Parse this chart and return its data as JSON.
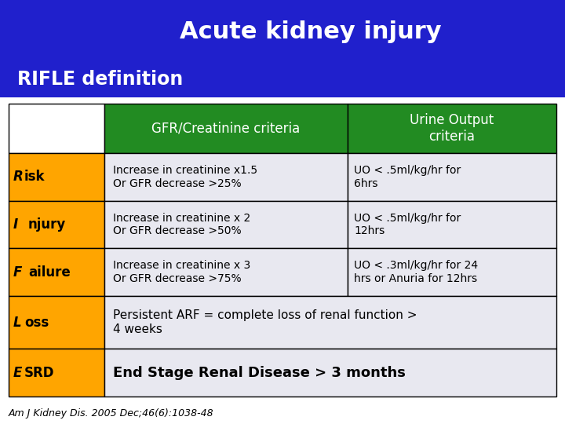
{
  "title1": "Acute kidney injury",
  "title2": "RIFLE definition",
  "header_bg": "#2020CC",
  "header_text_color": "#FFFFFF",
  "col_header_bg": "#228B22",
  "col_header_text_color": "#FFFFFF",
  "row_label_bg": "#FFA500",
  "cell_bg": "#E8E8F0",
  "col_headers": [
    "GFR/Creatinine criteria",
    "Urine Output\ncriteria"
  ],
  "rows": [
    {
      "label": "Risk",
      "gfr": "Increase in creatinine x1.5\nOr GFR decrease >25%",
      "uo": "UO < .5ml/kg/hr for\n6hrs",
      "merged": false,
      "esrd": false
    },
    {
      "label": "Injury",
      "gfr": "Increase in creatinine x 2\nOr GFR decrease >50%",
      "uo": "UO < .5ml/kg/hr for\n12hrs",
      "merged": false,
      "esrd": false
    },
    {
      "label": "Failure",
      "gfr": "Increase in creatinine x 3\nOr GFR decrease >75%",
      "uo": "UO < .3ml/kg/hr for 24\nhrs or Anuria for 12hrs",
      "merged": false,
      "esrd": false
    },
    {
      "label": "Loss",
      "gfr": "Persistent ARF = complete loss of renal function >\n4 weeks",
      "uo": null,
      "merged": true,
      "esrd": false
    },
    {
      "label": "ESRD",
      "gfr": "End Stage Renal Disease > 3 months",
      "uo": null,
      "merged": true,
      "esrd": true
    }
  ],
  "footnote": "Am J Kidney Dis. 2005 Dec;46(6):1038-48",
  "fig_bg": "#FFFFFF"
}
